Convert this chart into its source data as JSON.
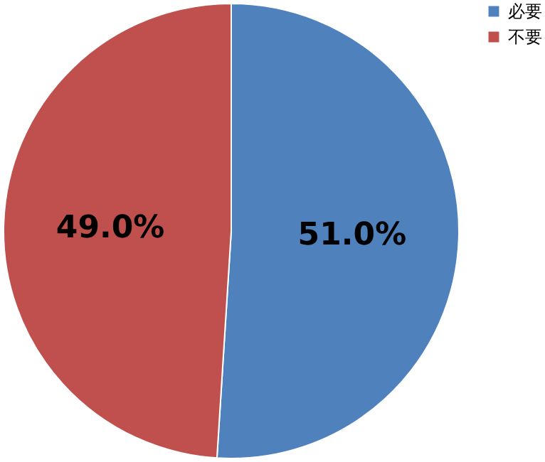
{
  "chart_data": {
    "type": "pie",
    "categories": [
      "必要",
      "不要"
    ],
    "values": [
      51.0,
      49.0
    ],
    "colors": [
      "#4f81bd",
      "#c0504d"
    ],
    "value_labels": [
      "51.0%",
      "49.0%"
    ],
    "legend": "right"
  }
}
